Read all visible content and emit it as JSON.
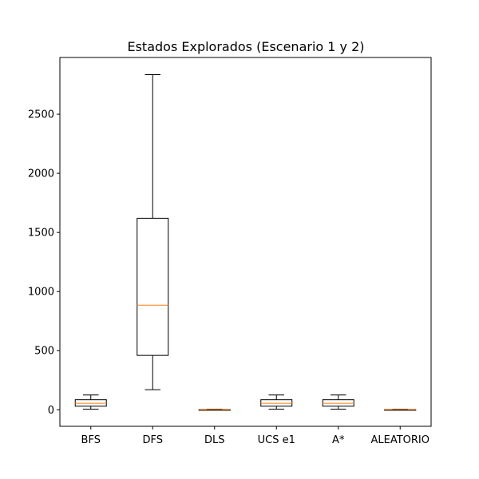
{
  "chart_data": {
    "type": "boxplot",
    "title": "Estados Explorados (Escenario 1 y 2)",
    "xlabel": "",
    "ylabel": "",
    "ylim": [
      -140,
      2980
    ],
    "yticks": [
      0,
      500,
      1000,
      1500,
      2000,
      2500
    ],
    "grid": false,
    "categories": [
      "BFS",
      "DFS",
      "DLS",
      "UCS e1",
      "A*",
      "ALEATORIO"
    ],
    "boxes": [
      {
        "whislo": 5,
        "q1": 30,
        "med": 55,
        "q3": 85,
        "whishi": 125
      },
      {
        "whislo": 170,
        "q1": 460,
        "med": 885,
        "q3": 1620,
        "whishi": 2835
      },
      {
        "whislo": 0,
        "q1": 0,
        "med": 0,
        "q3": 2,
        "whishi": 4
      },
      {
        "whislo": 5,
        "q1": 30,
        "med": 55,
        "q3": 85,
        "whishi": 125
      },
      {
        "whislo": 5,
        "q1": 30,
        "med": 55,
        "q3": 85,
        "whishi": 125
      },
      {
        "whislo": 0,
        "q1": 0,
        "med": 0,
        "q3": 2,
        "whishi": 4
      }
    ],
    "colors": {
      "box": "#000000",
      "median": "#ff7f0e",
      "axes": "#000000",
      "background": "#ffffff"
    }
  }
}
